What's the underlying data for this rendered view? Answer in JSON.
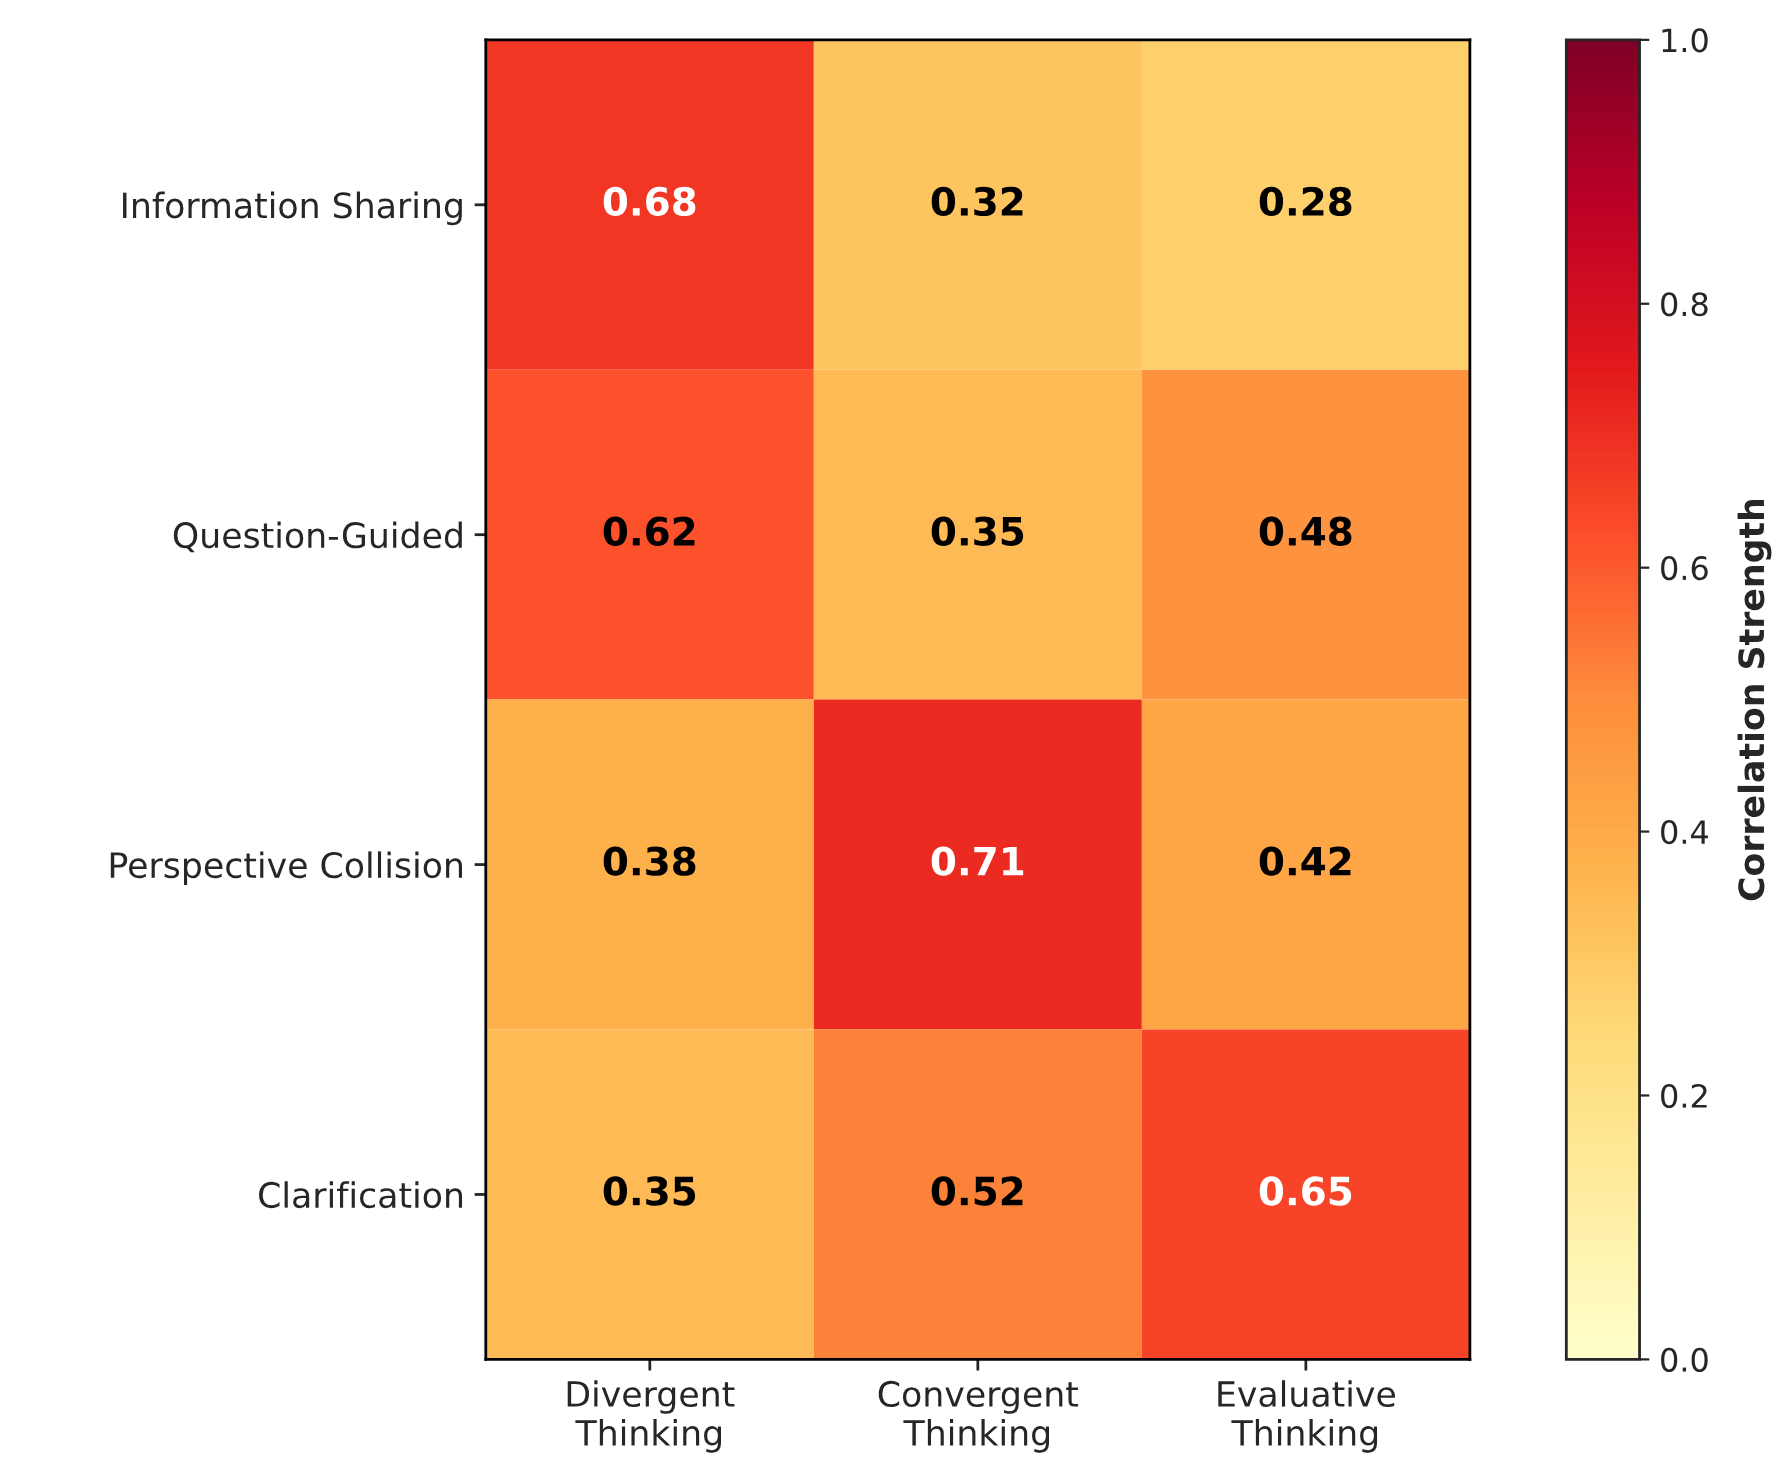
{
  "chart_data": {
    "type": "heatmap",
    "categories": [
      "Divergent\nThinking",
      "Convergent\nThinking",
      "Evaluative\nThinking"
    ],
    "y_categories": [
      "Information Sharing",
      "Question-Guided",
      "Perspective Collision",
      "Clarification"
    ],
    "cells": [
      [
        0.68,
        0.32,
        0.28
      ],
      [
        0.62,
        0.35,
        0.48
      ],
      [
        0.38,
        0.71,
        0.42
      ],
      [
        0.35,
        0.52,
        0.65
      ]
    ],
    "data_labels": true,
    "clabel": "Correlation Strength",
    "clim": [
      0,
      1
    ],
    "cticks": [
      {
        "value": 0,
        "label": "0.0"
      },
      {
        "value": 0.2,
        "label": "0.2"
      },
      {
        "value": 0.4,
        "label": "0.4"
      },
      {
        "value": 0.6,
        "label": "0.6"
      },
      {
        "value": 0.8,
        "label": "0.8"
      },
      {
        "value": 1,
        "label": "1.0"
      }
    ],
    "grid": false
  }
}
